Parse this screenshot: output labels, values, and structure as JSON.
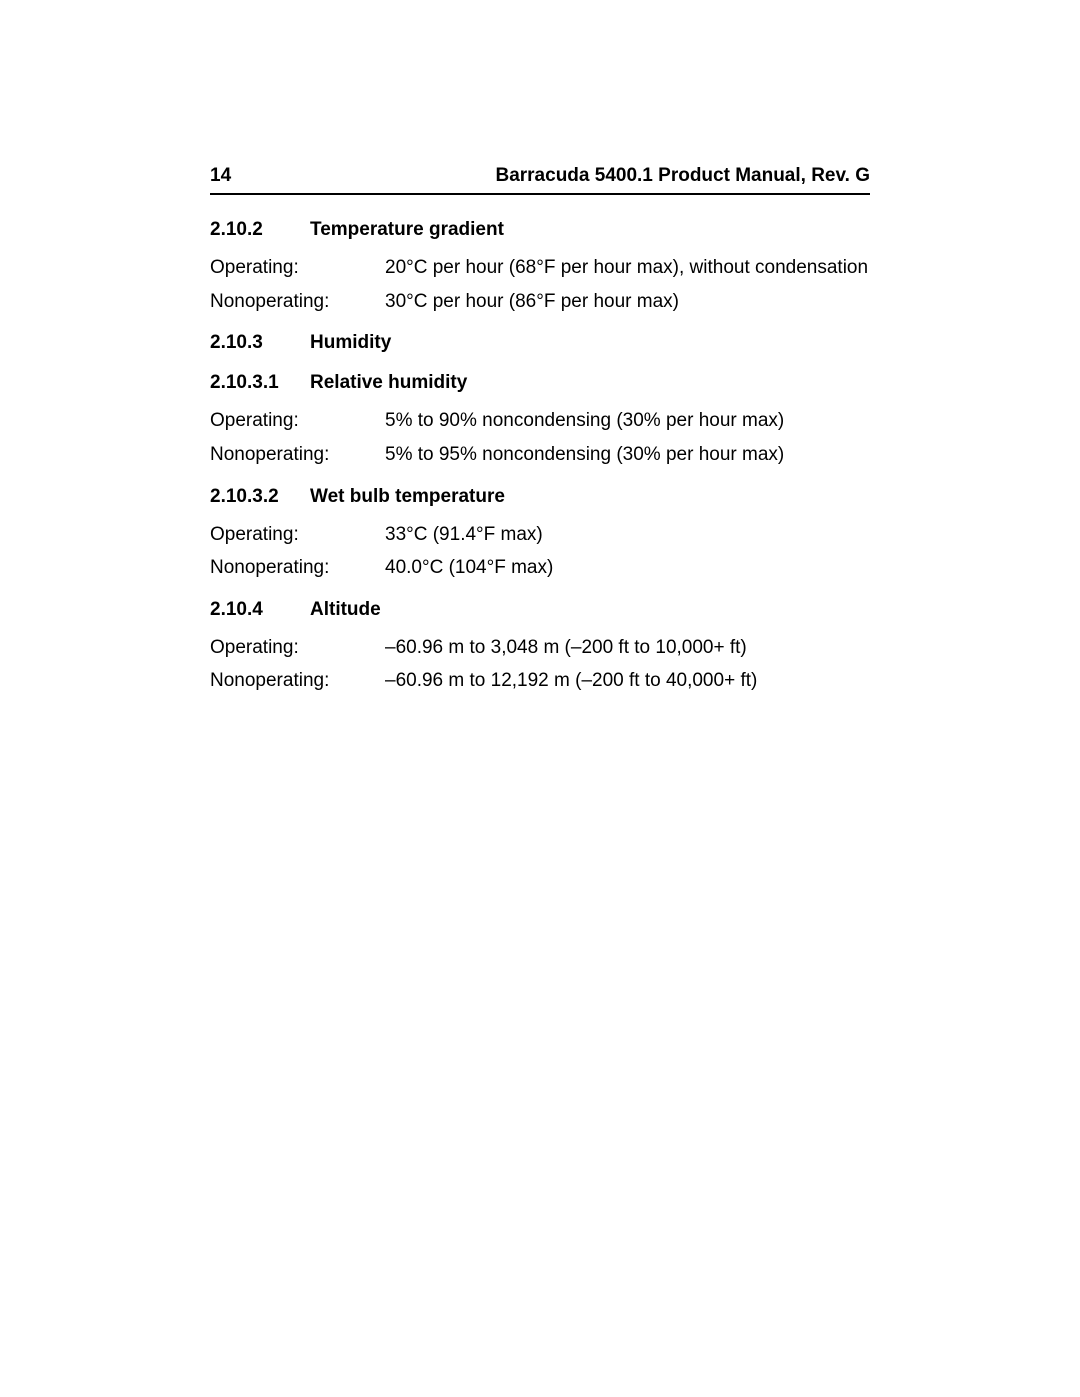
{
  "header": {
    "page_number": "14",
    "doc_title": "Barracuda 5400.1 Product Manual, Rev. G"
  },
  "sections": {
    "temp_gradient": {
      "num": "2.10.2",
      "title": "Temperature gradient",
      "operating_label": "Operating:",
      "operating_value": "20°C per hour (68°F per hour max), without condensation",
      "nonoperating_label": "Nonoperating:",
      "nonoperating_value": "30°C per hour (86°F per hour max)"
    },
    "humidity": {
      "num": "2.10.3",
      "title": "Humidity"
    },
    "relative_humidity": {
      "num": "2.10.3.1",
      "title": "Relative humidity",
      "operating_label": "Operating:",
      "operating_value": "5% to 90% noncondensing (30% per hour max)",
      "nonoperating_label": "Nonoperating:",
      "nonoperating_value": "5% to 95% noncondensing (30% per hour max)"
    },
    "wet_bulb": {
      "num": "2.10.3.2",
      "title": "Wet bulb temperature",
      "operating_label": "Operating:",
      "operating_value": "33°C (91.4°F max)",
      "nonoperating_label": "Nonoperating:",
      "nonoperating_value": "40.0°C (104°F max)"
    },
    "altitude": {
      "num": "2.10.4",
      "title": "Altitude",
      "operating_label": "Operating:",
      "operating_value": "–60.96 m to 3,048 m (–200 ft to 10,000+ ft)",
      "nonoperating_label": "Nonoperating:",
      "nonoperating_value": "–60.96 m to 12,192 m (–200 ft to 40,000+ ft)"
    }
  }
}
